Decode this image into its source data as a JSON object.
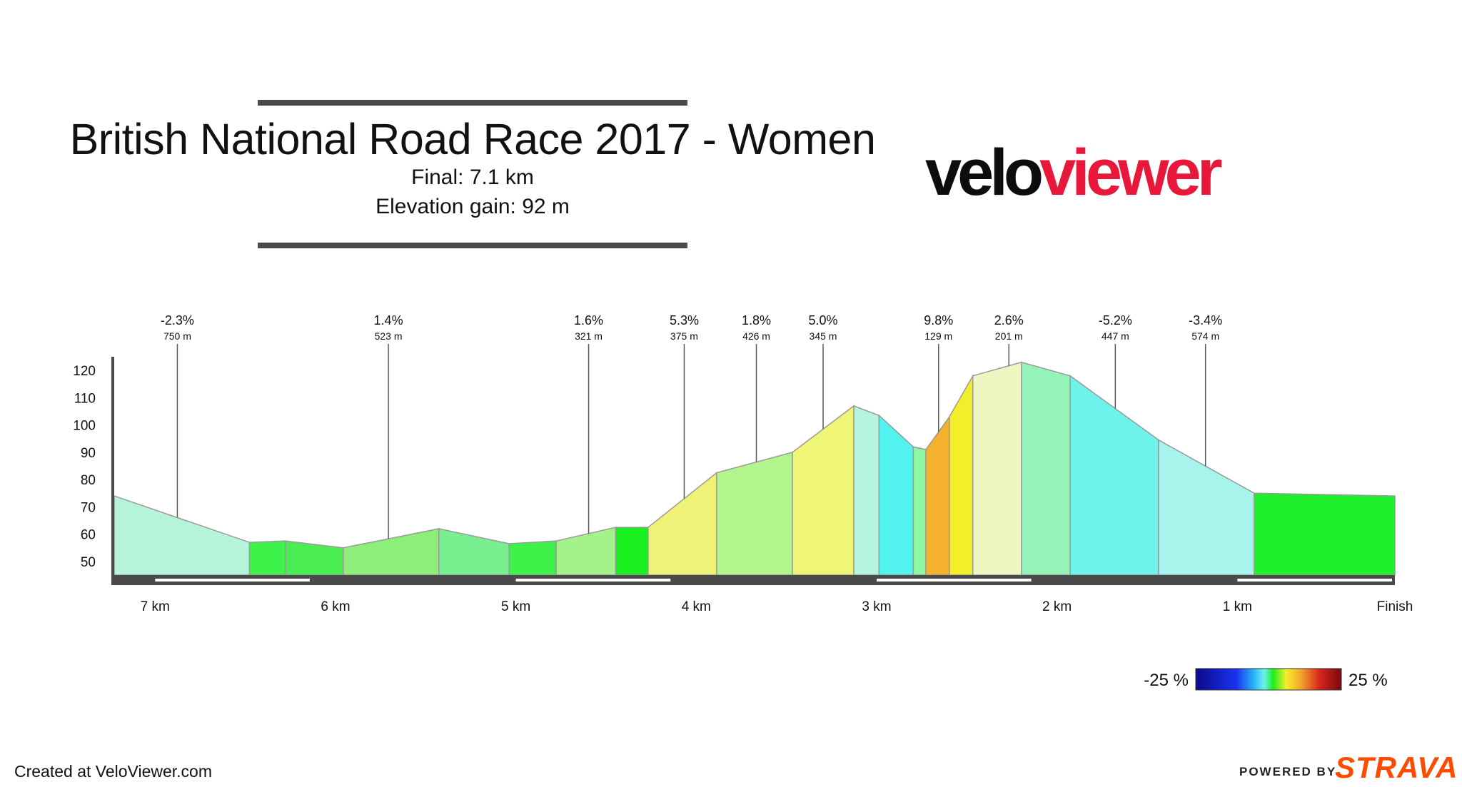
{
  "header": {
    "title": "British National Road Race 2017 - Women",
    "subtitle_final": "Final: 7.1 km",
    "subtitle_gain": "Elevation gain: 92 m"
  },
  "logo": {
    "part_dark": "velo",
    "part_red": "viewer"
  },
  "footer": {
    "credit": "Created at VeloViewer.com",
    "powered_by": "POWERED BY",
    "strava": "STRAVA"
  },
  "legend": {
    "min_label": "-25 %",
    "max_label": "25 %"
  },
  "chart_data": {
    "type": "area",
    "title": "British National Road Race 2017 - Women",
    "xlabel": "",
    "ylabel": "",
    "x_unit": "km to finish",
    "xlim": [
      7.1,
      0
    ],
    "ylim": [
      45,
      125
    ],
    "y_ticks": [
      50,
      60,
      70,
      80,
      90,
      100,
      110,
      120
    ],
    "x_ticks": [
      {
        "km": 7,
        "label": "7 km"
      },
      {
        "km": 6,
        "label": "6 km"
      },
      {
        "km": 5,
        "label": "5 km"
      },
      {
        "km": 4,
        "label": "4 km"
      },
      {
        "km": 3,
        "label": "3 km"
      },
      {
        "km": 2,
        "label": "2 km"
      },
      {
        "km": 1,
        "label": "1 km"
      },
      {
        "km": 0,
        "label": "Finish"
      }
    ],
    "profile": [
      {
        "km": 7.1,
        "elev": 74
      },
      {
        "km": 6.35,
        "elev": 57
      },
      {
        "km": 6.15,
        "elev": 57.5
      },
      {
        "km": 5.83,
        "elev": 55
      },
      {
        "km": 5.3,
        "elev": 62
      },
      {
        "km": 4.91,
        "elev": 56.5
      },
      {
        "km": 4.65,
        "elev": 57.5
      },
      {
        "km": 4.32,
        "elev": 62.5
      },
      {
        "km": 4.14,
        "elev": 62.5
      },
      {
        "km": 3.76,
        "elev": 82.5
      },
      {
        "km": 3.34,
        "elev": 90
      },
      {
        "km": 3.0,
        "elev": 107
      },
      {
        "km": 2.86,
        "elev": 103.5
      },
      {
        "km": 2.67,
        "elev": 92
      },
      {
        "km": 2.6,
        "elev": 91
      },
      {
        "km": 2.47,
        "elev": 103
      },
      {
        "km": 2.34,
        "elev": 118
      },
      {
        "km": 2.07,
        "elev": 123
      },
      {
        "km": 1.8,
        "elev": 118
      },
      {
        "km": 1.31,
        "elev": 94.5
      },
      {
        "km": 0.78,
        "elev": 75
      },
      {
        "km": 0.0,
        "elev": 74
      }
    ],
    "segment_colors": [
      "#b5f4d9",
      "#3ff24a",
      "#4aee52",
      "#8eee7a",
      "#78f08f",
      "#3ff24a",
      "#a4f28a",
      "#1aef20",
      "#f0f177",
      "#b2f58c",
      "#eef577",
      "#b6f4de",
      "#52f2ef",
      "#8ef7a2",
      "#f4b12e",
      "#f3ee2a",
      "#eef6c2",
      "#93f3b8",
      "#6ff1ec",
      "#a7f4ec",
      "#1fee2c"
    ],
    "annotations": [
      {
        "km": 6.75,
        "grade": "-2.3%",
        "length": "750 m"
      },
      {
        "km": 5.58,
        "grade": "1.4%",
        "length": "523 m"
      },
      {
        "km": 4.47,
        "grade": "1.6%",
        "length": "321 m"
      },
      {
        "km": 3.94,
        "grade": "5.3%",
        "length": "375 m"
      },
      {
        "km": 3.54,
        "grade": "1.8%",
        "length": "426 m"
      },
      {
        "km": 3.17,
        "grade": "5.0%",
        "length": "345 m"
      },
      {
        "km": 2.53,
        "grade": "9.8%",
        "length": "129 m"
      },
      {
        "km": 2.14,
        "grade": "2.6%",
        "length": "201 m"
      },
      {
        "km": 1.55,
        "grade": "-5.2%",
        "length": "447 m"
      },
      {
        "km": 1.05,
        "grade": "-3.4%",
        "length": "574 m"
      }
    ],
    "scale_bars": [
      [
        7.0,
        6.0
      ],
      [
        5.0,
        4.0
      ],
      [
        3.0,
        2.0
      ],
      [
        1.0,
        0.0
      ]
    ],
    "legend": {
      "min": -25,
      "max": 25,
      "unit": "%"
    }
  }
}
